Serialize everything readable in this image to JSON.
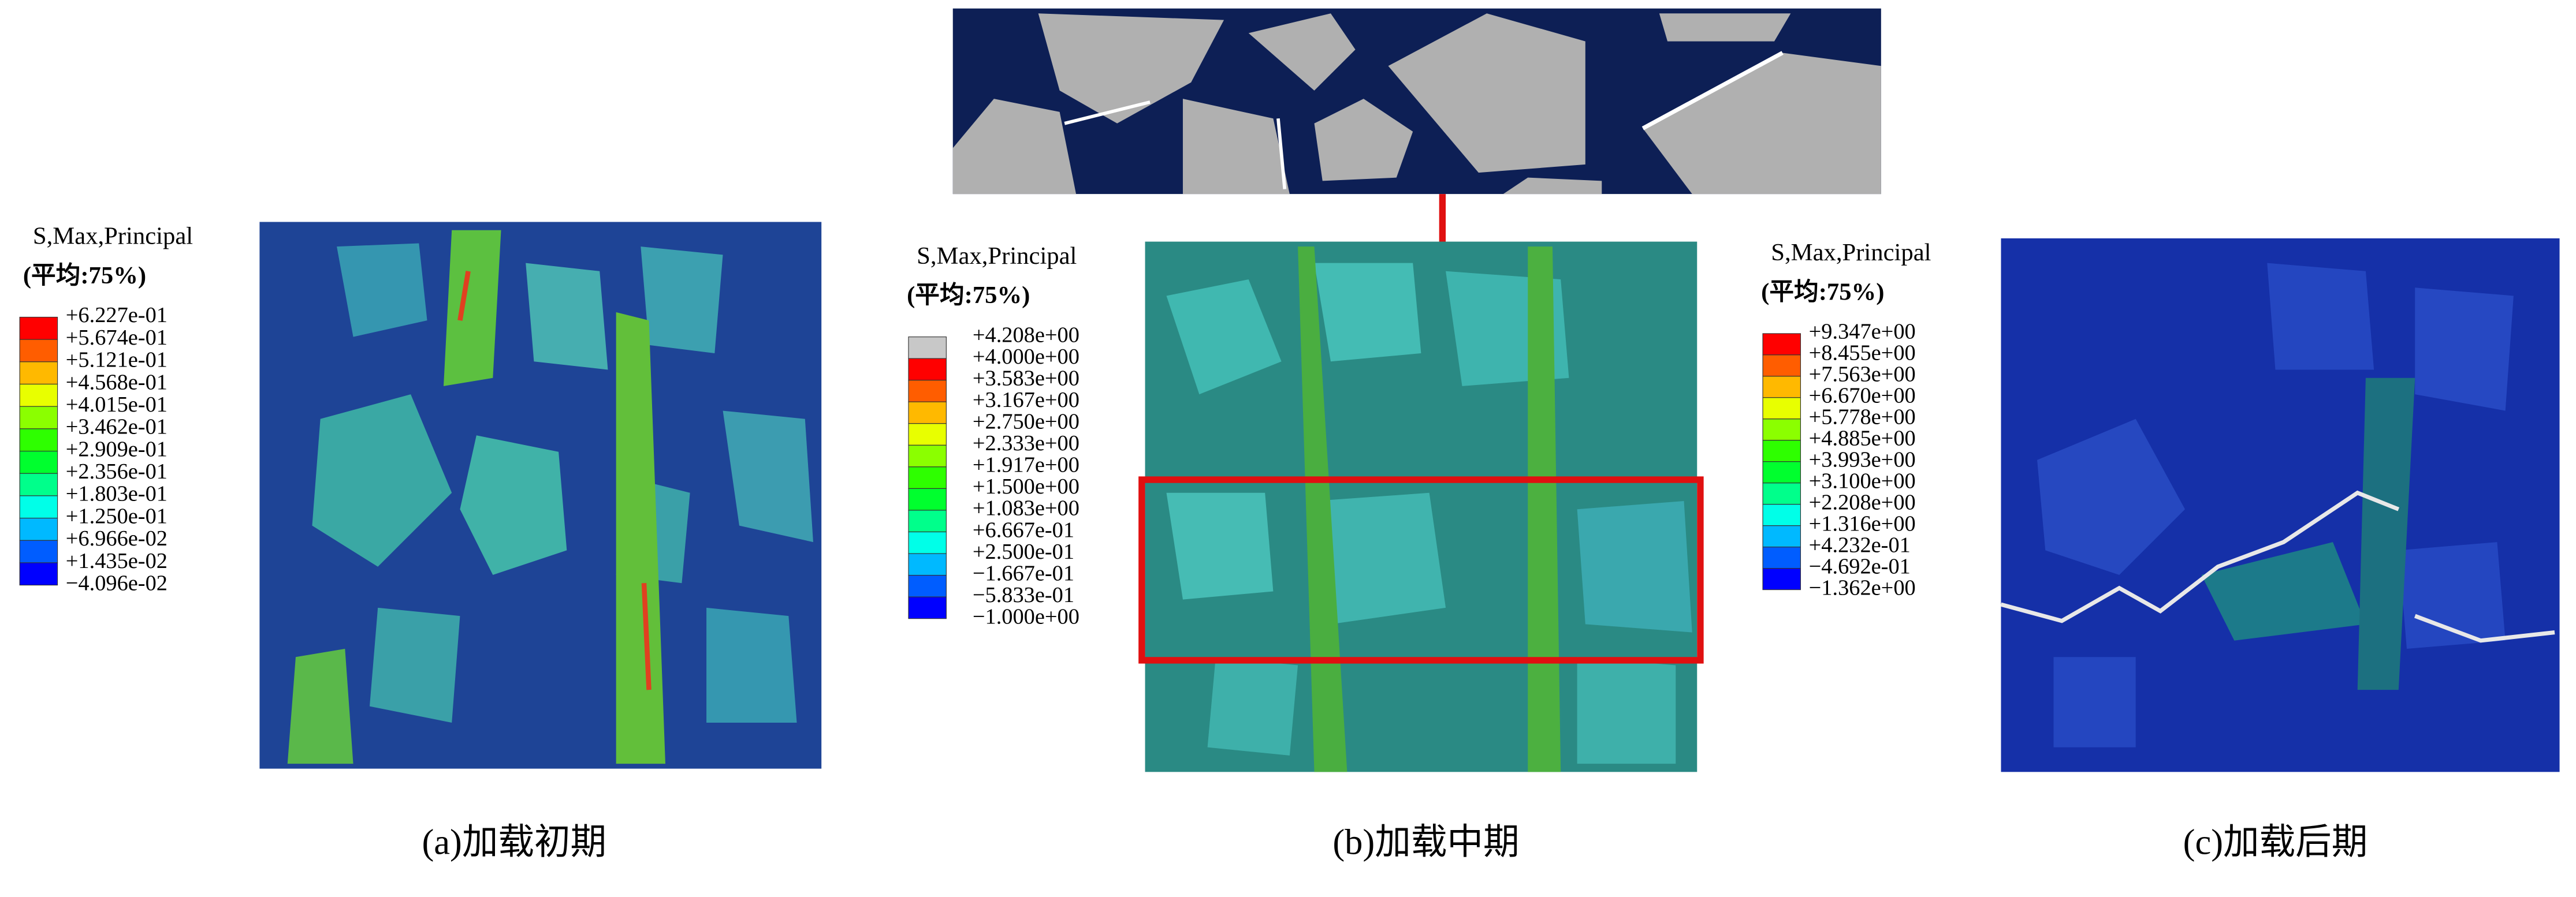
{
  "panels": [
    {
      "legend_title": "S,Max,Principal",
      "legend_subtitle": "(平均:75%)",
      "legend_labels": [
        "+6.227e-01",
        "+5.674e-01",
        "+5.121e-01",
        "+4.568e-01",
        "+4.015e-01",
        "+3.462e-01",
        "+2.909e-01",
        "+2.356e-01",
        "+1.803e-01",
        "+1.250e-01",
        "+6.966e-02",
        "+1.435e-02",
        "−4.096e-02"
      ],
      "caption": "(a)加载初期"
    },
    {
      "legend_title": "S,Max,Principal",
      "legend_subtitle": "(平均:75%)",
      "legend_labels": [
        "+4.208e+00",
        "+4.000e+00",
        "+3.583e+00",
        "+3.167e+00",
        "+2.750e+00",
        "+2.333e+00",
        "+1.917e+00",
        "+1.500e+00",
        "+1.083e+00",
        "+6.667e-01",
        "+2.500e-01",
        "−1.667e-01",
        "−5.833e-01",
        "−1.000e+00"
      ],
      "caption": "(b)加载中期"
    },
    {
      "legend_title": "S,Max,Principal",
      "legend_subtitle": "(平均:75%)",
      "legend_labels": [
        "+9.347e+00",
        "+8.455e+00",
        "+7.563e+00",
        "+6.670e+00",
        "+5.778e+00",
        "+4.885e+00",
        "+3.993e+00",
        "+3.100e+00",
        "+2.208e+00",
        "+1.316e+00",
        "+4.232e-01",
        "−4.692e-01",
        "−1.362e+00"
      ],
      "caption": "(c)加载后期"
    }
  ]
}
